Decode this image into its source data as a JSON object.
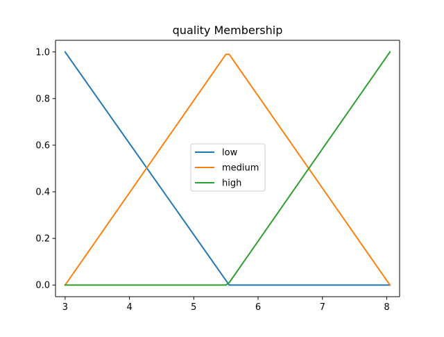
{
  "chart_data": {
    "type": "line",
    "title": "quality Membership",
    "xlabel": "",
    "ylabel": "",
    "xlim": [
      2.85,
      8.2
    ],
    "ylim": [
      -0.05,
      1.05
    ],
    "xticks": [
      3,
      4,
      5,
      6,
      7,
      8
    ],
    "yticks": [
      0.0,
      0.2,
      0.4,
      0.6,
      0.7,
      0.8,
      1.0
    ],
    "ytick_labels": [
      "0.0",
      "0.2",
      "0.4",
      "0.6",
      "",
      "0.8",
      "1.0"
    ],
    "grid": false,
    "legend": {
      "placement": "center"
    },
    "series": [
      {
        "name": "low",
        "color": "#1f77b4",
        "x": [
          3.0,
          3.05,
          5.5,
          5.55,
          8.05
        ],
        "y": [
          1.0,
          0.98,
          0.02,
          0.0,
          0.0
        ]
      },
      {
        "name": "medium",
        "color": "#ff7f0e",
        "x": [
          3.0,
          5.5,
          5.55,
          8.05
        ],
        "y": [
          0.0,
          0.99,
          0.99,
          0.0
        ]
      },
      {
        "name": "high",
        "color": "#2ca02c",
        "x": [
          3.0,
          5.5,
          5.55,
          8.05
        ],
        "y": [
          0.0,
          0.0,
          0.01,
          1.0
        ]
      }
    ]
  }
}
